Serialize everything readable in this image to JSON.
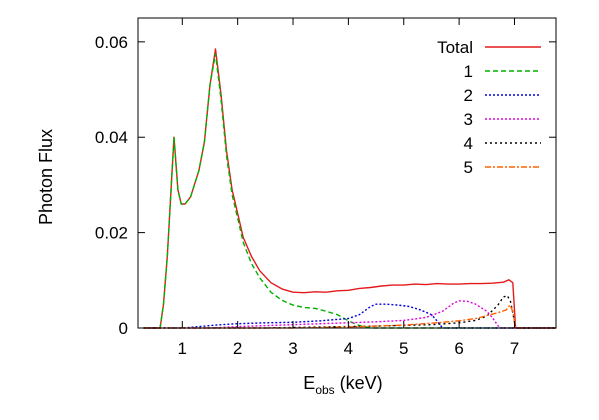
{
  "chart_data": {
    "type": "line",
    "title": "",
    "xlabel": "E",
    "xlabel_subscript": "obs",
    "xlabel_suffix": " (keV)",
    "ylabel": "Photon Flux",
    "xlim": [
      0.2,
      7.75
    ],
    "ylim": [
      0,
      0.065
    ],
    "grid": false,
    "legend_position": "top-right",
    "x_ticks": [
      1,
      2,
      3,
      4,
      5,
      6,
      7
    ],
    "x_tick_labels": [
      "1",
      "2",
      "3",
      "4",
      "5",
      "6",
      "7"
    ],
    "y_ticks": [
      0,
      0.02,
      0.04,
      0.06
    ],
    "y_tick_labels": [
      "0",
      "0.02",
      "0.04",
      "0.06"
    ],
    "series": [
      {
        "name": "Total",
        "color": "#e41a1c",
        "dash": "",
        "points": [
          [
            0.3,
            0
          ],
          [
            0.6,
            0
          ],
          [
            0.66,
            0.005
          ],
          [
            0.73,
            0.015
          ],
          [
            0.85,
            0.04
          ],
          [
            0.92,
            0.029
          ],
          [
            0.98,
            0.026
          ],
          [
            1.05,
            0.026
          ],
          [
            1.15,
            0.0275
          ],
          [
            1.3,
            0.033
          ],
          [
            1.4,
            0.039
          ],
          [
            1.5,
            0.051
          ],
          [
            1.6,
            0.0585
          ],
          [
            1.7,
            0.049
          ],
          [
            1.8,
            0.037
          ],
          [
            1.9,
            0.029
          ],
          [
            2.0,
            0.024
          ],
          [
            2.1,
            0.019
          ],
          [
            2.25,
            0.015
          ],
          [
            2.4,
            0.012
          ],
          [
            2.6,
            0.0095
          ],
          [
            2.8,
            0.0082
          ],
          [
            3.0,
            0.0075
          ],
          [
            3.2,
            0.0074
          ],
          [
            3.4,
            0.0076
          ],
          [
            3.6,
            0.0075
          ],
          [
            3.8,
            0.0078
          ],
          [
            4.0,
            0.0079
          ],
          [
            4.2,
            0.0083
          ],
          [
            4.4,
            0.0085
          ],
          [
            4.6,
            0.0088
          ],
          [
            4.8,
            0.009
          ],
          [
            5.0,
            0.009
          ],
          [
            5.2,
            0.0092
          ],
          [
            5.4,
            0.0091
          ],
          [
            5.6,
            0.0093
          ],
          [
            5.8,
            0.0092
          ],
          [
            6.0,
            0.0092
          ],
          [
            6.2,
            0.0093
          ],
          [
            6.4,
            0.0093
          ],
          [
            6.6,
            0.0094
          ],
          [
            6.8,
            0.0096
          ],
          [
            6.9,
            0.0101
          ],
          [
            6.97,
            0.0095
          ],
          [
            7.02,
            0
          ],
          [
            7.75,
            0
          ]
        ]
      },
      {
        "name": "1",
        "color": "#00b000",
        "dash": "5,3",
        "points": [
          [
            0.3,
            0
          ],
          [
            0.6,
            0
          ],
          [
            0.66,
            0.005
          ],
          [
            0.73,
            0.015
          ],
          [
            0.85,
            0.04
          ],
          [
            0.92,
            0.029
          ],
          [
            0.98,
            0.026
          ],
          [
            1.05,
            0.026
          ],
          [
            1.15,
            0.0275
          ],
          [
            1.3,
            0.033
          ],
          [
            1.4,
            0.039
          ],
          [
            1.5,
            0.051
          ],
          [
            1.6,
            0.0575
          ],
          [
            1.7,
            0.048
          ],
          [
            1.8,
            0.036
          ],
          [
            1.9,
            0.028
          ],
          [
            2.0,
            0.023
          ],
          [
            2.1,
            0.018
          ],
          [
            2.25,
            0.0135
          ],
          [
            2.4,
            0.0105
          ],
          [
            2.6,
            0.0075
          ],
          [
            2.8,
            0.0058
          ],
          [
            3.0,
            0.0048
          ],
          [
            3.2,
            0.0043
          ],
          [
            3.4,
            0.0041
          ],
          [
            3.6,
            0.0035
          ],
          [
            3.8,
            0.0028
          ],
          [
            4.0,
            0.0015
          ],
          [
            4.2,
            0.0005
          ],
          [
            4.4,
            0
          ],
          [
            7.75,
            0
          ]
        ]
      },
      {
        "name": "2",
        "color": "#0000e0",
        "dash": "2,2",
        "points": [
          [
            0.3,
            0
          ],
          [
            1.0,
            0
          ],
          [
            1.3,
            0.0003
          ],
          [
            1.6,
            0.0006
          ],
          [
            2.0,
            0.0009
          ],
          [
            2.5,
            0.0011
          ],
          [
            3.0,
            0.0012
          ],
          [
            3.5,
            0.0015
          ],
          [
            4.0,
            0.002
          ],
          [
            4.2,
            0.0028
          ],
          [
            4.4,
            0.0045
          ],
          [
            4.5,
            0.005
          ],
          [
            4.7,
            0.005
          ],
          [
            4.9,
            0.0048
          ],
          [
            5.1,
            0.0045
          ],
          [
            5.3,
            0.0038
          ],
          [
            5.5,
            0.0028
          ],
          [
            5.6,
            0.0015
          ],
          [
            5.7,
            0
          ],
          [
            7.75,
            0
          ]
        ]
      },
      {
        "name": "3",
        "color": "#e000e0",
        "dash": "2,2",
        "points": [
          [
            0.3,
            0
          ],
          [
            1.5,
            0
          ],
          [
            2.0,
            0.0003
          ],
          [
            2.5,
            0.0005
          ],
          [
            3.0,
            0.0007
          ],
          [
            3.5,
            0.0009
          ],
          [
            4.0,
            0.0011
          ],
          [
            4.5,
            0.0013
          ],
          [
            5.0,
            0.0016
          ],
          [
            5.4,
            0.0022
          ],
          [
            5.7,
            0.0035
          ],
          [
            5.9,
            0.0052
          ],
          [
            6.0,
            0.0057
          ],
          [
            6.15,
            0.0056
          ],
          [
            6.3,
            0.005
          ],
          [
            6.5,
            0.0035
          ],
          [
            6.6,
            0.0022
          ],
          [
            6.7,
            0.0005
          ],
          [
            6.75,
            0
          ],
          [
            7.75,
            0
          ]
        ]
      },
      {
        "name": "4",
        "color": "#000000",
        "dash": "2,3",
        "points": [
          [
            0.3,
            0
          ],
          [
            2.5,
            0
          ],
          [
            3.5,
            0.0002
          ],
          [
            4.5,
            0.0004
          ],
          [
            5.5,
            0.0007
          ],
          [
            6.0,
            0.0011
          ],
          [
            6.3,
            0.0016
          ],
          [
            6.5,
            0.0025
          ],
          [
            6.7,
            0.0048
          ],
          [
            6.8,
            0.0065
          ],
          [
            6.87,
            0.0068
          ],
          [
            6.93,
            0.0055
          ],
          [
            6.98,
            0.0025
          ],
          [
            7.02,
            0
          ],
          [
            7.75,
            0
          ]
        ]
      },
      {
        "name": "5",
        "color": "#ff6000",
        "dash": "6,2,2,2",
        "points": [
          [
            0.3,
            0
          ],
          [
            3.0,
            0
          ],
          [
            4.0,
            0.0002
          ],
          [
            5.0,
            0.0006
          ],
          [
            5.5,
            0.001
          ],
          [
            6.0,
            0.0015
          ],
          [
            6.3,
            0.002
          ],
          [
            6.5,
            0.0026
          ],
          [
            6.7,
            0.0032
          ],
          [
            6.85,
            0.0038
          ],
          [
            6.92,
            0.0048
          ],
          [
            6.97,
            0.0035
          ],
          [
            7.02,
            0
          ],
          [
            7.75,
            0
          ]
        ]
      }
    ]
  }
}
